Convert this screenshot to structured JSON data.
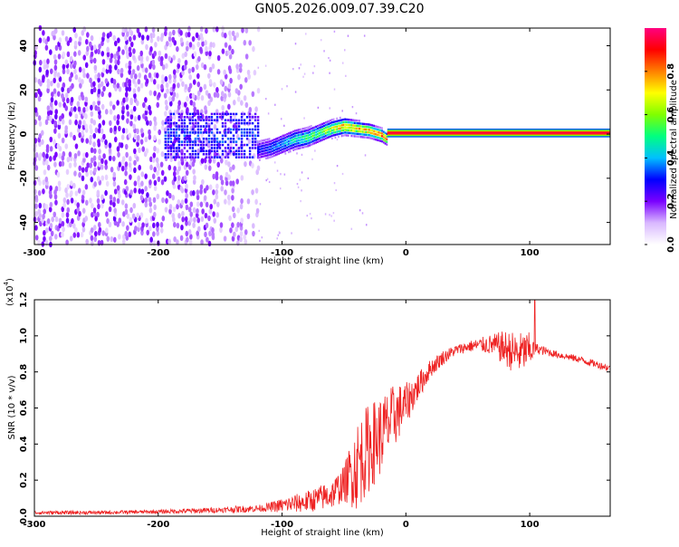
{
  "figure_title": "GN05.2026.009.07.39.C20",
  "chart_data": [
    {
      "type": "heatmap",
      "title": "GN05.2026.009.07.39.C20",
      "xlabel": "Height of straight line (km)",
      "ylabel": "Frequency (Hz)",
      "xlim": [
        -300,
        165
      ],
      "ylim": [
        -50,
        48
      ],
      "x_ticks": [
        "-300",
        "-200",
        "-100",
        "0",
        "100"
      ],
      "x_tick_values": [
        -300,
        -200,
        -100,
        0,
        100
      ],
      "y_ticks": [
        "-40",
        "-20",
        "0",
        "20",
        "40"
      ],
      "y_tick_values": [
        -40,
        -20,
        0,
        20,
        40
      ],
      "colorbar": {
        "label": "Normalized spectral amplitude",
        "range": [
          0,
          1
        ],
        "ticks": [
          "0.0",
          "0.2",
          "0.4",
          "0.6",
          "0.8"
        ],
        "tick_values": [
          0.0,
          0.2,
          0.4,
          0.6,
          0.8
        ],
        "colors": [
          "#ffffff",
          "#d9b8ff",
          "#7a00ff",
          "#0000ff",
          "#00c0ff",
          "#00ff80",
          "#80ff00",
          "#ffff00",
          "#ff8000",
          "#ff0000",
          "#ff0080"
        ]
      },
      "regions": [
        {
          "name": "noise",
          "x": [
            -300,
            -120
          ],
          "freq": [
            -50,
            48
          ],
          "amplitude": 0.12,
          "note": "scattered low-amplitude speckle"
        },
        {
          "name": "onset",
          "x": [
            -195,
            -120
          ],
          "freq": [
            -10,
            10
          ],
          "amplitude": 0.25
        },
        {
          "name": "transition",
          "x": [
            -120,
            -15
          ],
          "freq_center": [
            -6,
            -4,
            -2,
            0,
            2,
            4,
            4,
            2,
            0,
            -2,
            -3
          ],
          "amplitude": 0.55
        },
        {
          "name": "tone",
          "x": [
            -15,
            165
          ],
          "freq_center": 0.5,
          "amplitude": 0.95
        }
      ],
      "transition_track": {
        "x": [
          -120,
          -110,
          -100,
          -90,
          -80,
          -70,
          -60,
          -50,
          -40,
          -30,
          -20,
          -15
        ],
        "freq": [
          -7,
          -6,
          -4,
          -2,
          -1,
          1,
          3,
          4,
          3,
          2,
          0,
          -2
        ],
        "amplitude": [
          0.3,
          0.35,
          0.42,
          0.5,
          0.55,
          0.6,
          0.7,
          0.85,
          0.8,
          0.8,
          0.9,
          0.85
        ]
      }
    },
    {
      "type": "line",
      "xlabel": "Height of straight line (km)",
      "ylabel": "SNR (10 * v/v)",
      "scale_label": "(x10⁴)",
      "scale_base": "(x10",
      "scale_exp": "4",
      "scale_close": ")",
      "xlim": [
        -300,
        165
      ],
      "ylim": [
        0,
        1.2
      ],
      "x_ticks": [
        "-300",
        "-200",
        "-100",
        "0",
        "100"
      ],
      "x_tick_values": [
        -300,
        -200,
        -100,
        0,
        100
      ],
      "y_ticks": [
        "0.0",
        "0.2",
        "0.4",
        "0.6",
        "0.8",
        "1.0",
        "1.2"
      ],
      "y_tick_values": [
        0.0,
        0.2,
        0.4,
        0.6,
        0.8,
        1.0,
        1.2
      ],
      "color": "#ee2222",
      "series": [
        {
          "name": "SNR",
          "x": [
            -300,
            -250,
            -200,
            -170,
            -150,
            -130,
            -115,
            -100,
            -80,
            -60,
            -50,
            -40,
            -30,
            -20,
            -10,
            0,
            10,
            20,
            30,
            40,
            50,
            60,
            70,
            80,
            90,
            100,
            105,
            120,
            140,
            165
          ],
          "mean": [
            0.02,
            0.02,
            0.025,
            0.03,
            0.035,
            0.04,
            0.045,
            0.06,
            0.08,
            0.12,
            0.18,
            0.28,
            0.38,
            0.45,
            0.55,
            0.62,
            0.72,
            0.82,
            0.88,
            0.92,
            0.94,
            0.95,
            0.95,
            0.93,
            0.9,
            0.92,
            0.93,
            0.9,
            0.87,
            0.82
          ],
          "spread": [
            0.01,
            0.01,
            0.01,
            0.015,
            0.015,
            0.02,
            0.02,
            0.04,
            0.06,
            0.08,
            0.1,
            0.25,
            0.25,
            0.22,
            0.18,
            0.12,
            0.08,
            0.05,
            0.04,
            0.03,
            0.03,
            0.04,
            0.06,
            0.1,
            0.12,
            0.1,
            0.03,
            0.02,
            0.02,
            0.02
          ]
        }
      ],
      "peak": {
        "x": 104,
        "y": 1.2
      }
    }
  ]
}
